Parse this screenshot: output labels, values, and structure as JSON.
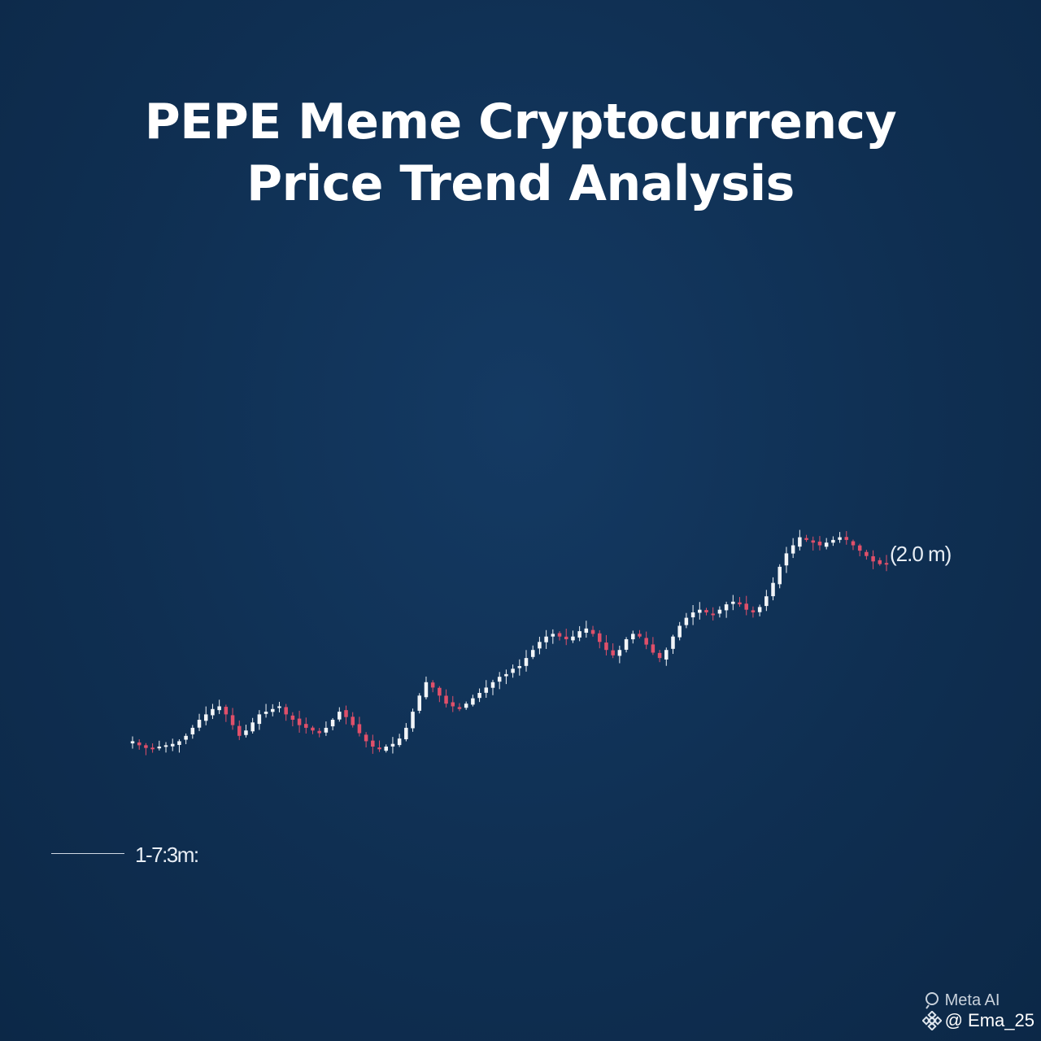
{
  "title": {
    "line1": "PEPE Meme Cryptocurrency",
    "line2": "Price Trend Analysis"
  },
  "chart_data": {
    "type": "candlestick",
    "title": "PEPE Meme Cryptocurrency Price Trend Analysis",
    "xlabel": "",
    "ylabel": "",
    "grid": false,
    "legend": "none",
    "start_label": "1-7:3m:",
    "end_label": "(2.0 m)",
    "colors": {
      "up": "#f2f5f8",
      "down": "#e0506a",
      "background": "#0f2f52"
    },
    "trend_close": [
      2,
      0.5,
      -0.5,
      -1,
      0,
      0.5,
      1,
      2,
      4,
      7,
      10,
      12,
      14,
      15,
      12,
      8,
      4,
      6,
      9,
      12,
      13,
      14,
      15,
      12,
      10,
      8,
      7,
      6,
      5,
      7,
      10,
      13,
      11,
      8,
      5,
      2,
      0,
      -1,
      0,
      1,
      3,
      7,
      13,
      19,
      24,
      22,
      19,
      16,
      15,
      14,
      16,
      18,
      20,
      22,
      24,
      26,
      27,
      29,
      30,
      33,
      36,
      39,
      41,
      42,
      41,
      40,
      41,
      43,
      44,
      42,
      39,
      36,
      34,
      36,
      40,
      42,
      41,
      38,
      35,
      33,
      36,
      41,
      45,
      48,
      50,
      51,
      50,
      49,
      51,
      53,
      54,
      53,
      51,
      50,
      52,
      56,
      61,
      67,
      72,
      75,
      78,
      77,
      76,
      75,
      76,
      77,
      78,
      77,
      75,
      73,
      71,
      69,
      68,
      68
    ]
  },
  "watermark": {
    "line1": "Meta AI",
    "line2": "@ Ema_25"
  }
}
